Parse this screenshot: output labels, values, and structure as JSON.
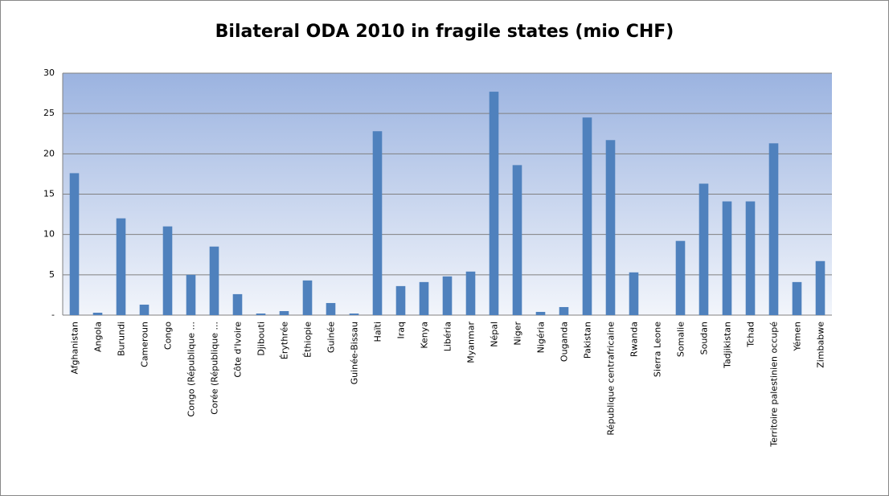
{
  "chart_data": {
    "type": "bar",
    "title": "Bilateral ODA 2010 in fragile states (mio CHF)",
    "categories": [
      "Afghanistan",
      "Angola",
      "Burundi",
      "Cameroun",
      "Congo",
      "Congo (République ...",
      "Corée (République ...",
      "Côte d'Ivoire",
      "Djibouti",
      "Érythrée",
      "Éthiopie",
      "Guinée",
      "Guinée-Bissau",
      "Haïti",
      "Iraq",
      "Kenya",
      "Libéria",
      "Myanmar",
      "Népal",
      "Niger",
      "Nigéria",
      "Ouganda",
      "Pakistan",
      "République centrafricaine",
      "Rwanda",
      "Sierra Leone",
      "Somalie",
      "Soudan",
      "Tadjikistan",
      "Tchad",
      "Territoire palestinien occupé",
      "Yémen",
      "Zimbabwe"
    ],
    "values": [
      17.6,
      0.3,
      12.0,
      1.3,
      11.0,
      5.0,
      8.5,
      2.6,
      0.2,
      0.5,
      4.3,
      1.5,
      0.2,
      22.8,
      3.6,
      4.1,
      4.8,
      5.4,
      27.7,
      18.6,
      0.4,
      1.0,
      24.5,
      21.7,
      5.3,
      0,
      9.2,
      16.3,
      14.1,
      14.1,
      21.3,
      4.1,
      6.7
    ],
    "color": "#4f81bd",
    "ylim": [
      0,
      30
    ],
    "yticks": [
      {
        "value": 0,
        "label": "-"
      },
      5,
      10,
      15,
      20,
      25,
      30
    ],
    "grid": true
  }
}
